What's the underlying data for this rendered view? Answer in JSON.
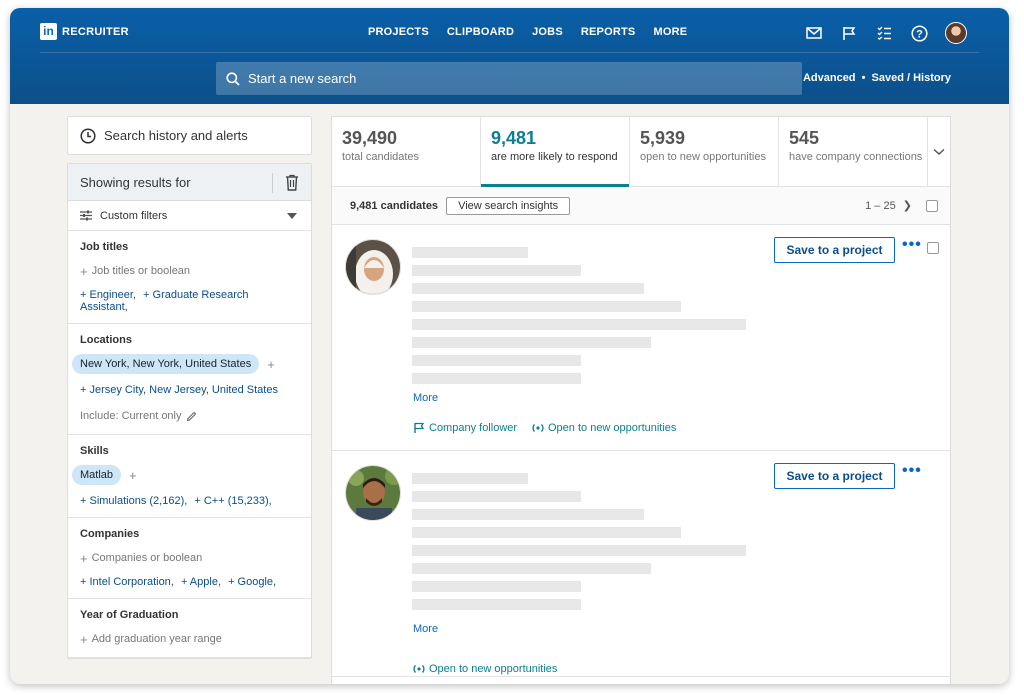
{
  "app": {
    "brand": "RECRUITER",
    "logo_letters": "in"
  },
  "nav": [
    "PROJECTS",
    "CLIPBOARD",
    "JOBS",
    "REPORTS",
    "MORE"
  ],
  "top_icons": [
    "mail-icon",
    "flag-icon",
    "checklist-icon",
    "help-icon"
  ],
  "search": {
    "placeholder": "Start a new search",
    "advanced": "Advanced",
    "separator": "•",
    "saved_history": "Saved / History"
  },
  "left": {
    "history": "Search history and alerts",
    "showing": "Showing results for",
    "custom_filters": "Custom filters",
    "job_titles": {
      "title": "Job titles",
      "add": "Job titles or boolean",
      "suggestions": [
        "+ Engineer,",
        "+ Graduate Research Assistant,"
      ]
    },
    "locations": {
      "title": "Locations",
      "selected": "New York, New York, United States",
      "suggestion": "+ Jersey City, New Jersey, United States",
      "include": "Include: Current only"
    },
    "skills": {
      "title": "Skills",
      "selected": "Matlab",
      "suggestions": [
        "+ Simulations (2,162),",
        "+ C++ (15,233),"
      ]
    },
    "companies": {
      "title": "Companies",
      "add": "Companies or boolean",
      "suggestions": [
        "+ Intel Corporation,",
        "+ Apple,",
        "+ Google,"
      ]
    },
    "graduation": {
      "title": "Year of Graduation",
      "add": "Add graduation year range"
    }
  },
  "stats": [
    {
      "num": "39,490",
      "label": "total candidates"
    },
    {
      "num": "9,481",
      "label": "are more likely to respond"
    },
    {
      "num": "5,939",
      "label": "open to new opportunities"
    },
    {
      "num": "545",
      "label": "have company connections"
    }
  ],
  "results": {
    "count": "9,481 candidates",
    "insights": "View search insights",
    "pager": "1 – 25"
  },
  "candidates": [
    {
      "save": "Save to a project",
      "more": "More",
      "tags": [
        "Company follower",
        "Open to new opportunities"
      ]
    },
    {
      "save": "Save to a project",
      "more": "More",
      "tags": [
        "Open to new opportunities"
      ]
    }
  ],
  "colors": {
    "topbar": "#0a5fa8",
    "accent_teal": "#0b7f91",
    "link_blue": "#0a66c2",
    "pill_bg": "#cfe6f7"
  }
}
